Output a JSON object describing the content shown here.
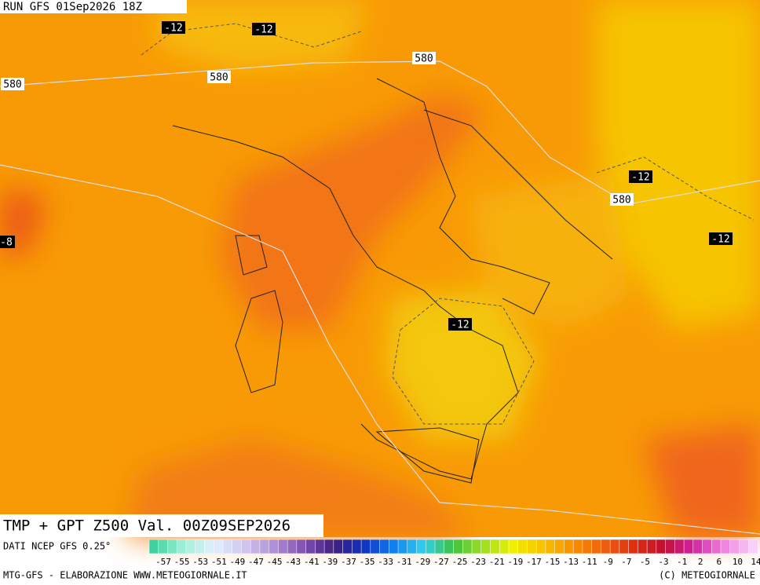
{
  "header": {
    "run": "RUN GFS 01Sep2026 18Z"
  },
  "map": {
    "title": "TMP + GPT Z500 Val. 00Z09SEP2026",
    "contour_labels": [
      "-12",
      "-12",
      "580",
      "580",
      "580",
      "-12",
      "580",
      "-12",
      "-8",
      "-12"
    ]
  },
  "colorbar": {
    "source": "DATI NCEP GFS 0.25°",
    "labels": [
      -57,
      -55,
      -53,
      -51,
      -49,
      -47,
      -45,
      -43,
      -41,
      -39,
      -37,
      -35,
      -33,
      -31,
      -29,
      -27,
      -25,
      -23,
      -21,
      -19,
      -17,
      -15,
      -13,
      -11,
      -9,
      -7,
      -5,
      -3,
      -1,
      2,
      6,
      10,
      14
    ]
  },
  "footer": {
    "left": "MTG-GFS - ELABORAZIONE WWW.METEOGIORNALE.IT",
    "right": "(C) METEOGIORNALE"
  }
}
